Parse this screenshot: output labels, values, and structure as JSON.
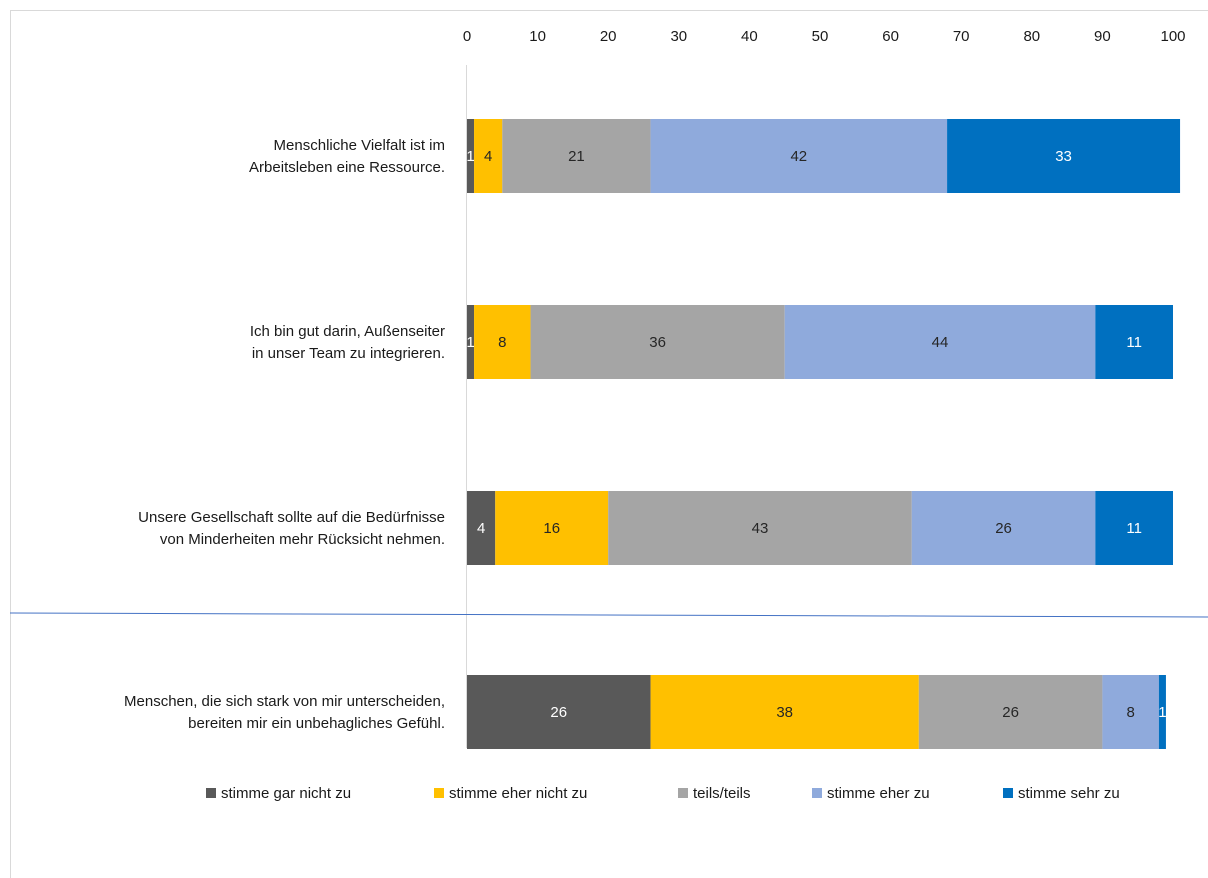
{
  "chart_data": {
    "type": "bar",
    "orientation": "horizontal",
    "stacked": true,
    "title": "",
    "xlabel": "",
    "ylabel": "",
    "xlim": [
      0,
      100
    ],
    "x_ticks": [
      "0",
      "10",
      "20",
      "30",
      "40",
      "50",
      "60",
      "70",
      "80",
      "90",
      "100"
    ],
    "x_axis_position": "top",
    "grid": false,
    "legend_position": "bottom",
    "categories": [
      [
        "Menschliche Vielfalt ist im",
        "Arbeitsleben eine Ressource."
      ],
      [
        "Ich bin gut darin, Außenseiter",
        "in unser Team zu integrieren."
      ],
      [
        "Unsere Gesellschaft sollte auf die Bedürfnisse",
        "von Minderheiten mehr Rücksicht nehmen."
      ],
      [
        "Menschen, die sich stark von mir unterscheiden,",
        "bereiten mir ein unbehagliches Gefühl."
      ]
    ],
    "series": [
      {
        "name": "stimme gar nicht zu",
        "color": "#595959",
        "label_color": "#ffffff",
        "values": [
          1,
          1,
          4,
          26
        ]
      },
      {
        "name": "stimme eher nicht zu",
        "color": "#ffc000",
        "label_color": "#262626",
        "values": [
          4,
          8,
          16,
          38
        ]
      },
      {
        "name": "teils/teils",
        "color": "#a5a5a5",
        "label_color": "#262626",
        "values": [
          21,
          36,
          43,
          26
        ]
      },
      {
        "name": "stimme eher zu",
        "color": "#8faadc",
        "label_color": "#262626",
        "values": [
          42,
          44,
          26,
          8
        ]
      },
      {
        "name": "stimme sehr zu",
        "color": "#0070c0",
        "label_color": "#ffffff",
        "values": [
          33,
          11,
          11,
          1
        ]
      }
    ]
  }
}
